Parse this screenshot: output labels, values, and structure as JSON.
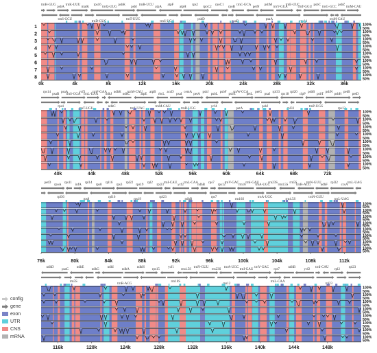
{
  "colors": {
    "exon": "#7a83c7",
    "utr": "#5fd0dc",
    "cns": "#f08a87",
    "mrna": "#b2b2b2",
    "gene": "#7d7d7d",
    "config": "#c8c8c8",
    "plot_bg": "#6e7fc9",
    "line": "#222222"
  },
  "legend": [
    {
      "key": "config",
      "label": "config",
      "kind": "arrow",
      "color": "#c8c8c8"
    },
    {
      "key": "gene",
      "label": "gene",
      "kind": "arrow",
      "color": "#7d7d7d"
    },
    {
      "key": "exon",
      "label": "exon",
      "kind": "box",
      "color": "#7a83c7"
    },
    {
      "key": "utr",
      "label": "UTR",
      "kind": "box",
      "color": "#5fd0dc"
    },
    {
      "key": "cns",
      "label": "CNS",
      "kind": "box",
      "color": "#f08a87"
    },
    {
      "key": "mrna",
      "label": "mRNA",
      "kind": "box",
      "color": "#b2b2b2"
    }
  ],
  "panels": [
    {
      "id": "p1",
      "start": 0,
      "end": 38000,
      "ticks": [
        "0k",
        "4k",
        "8k",
        "12k",
        "16k",
        "20k",
        "24k",
        "28k",
        "32k",
        "36k"
      ],
      "tick_values": [
        0,
        4000,
        8000,
        12000,
        16000,
        20000,
        24000,
        28000,
        32000,
        36000
      ],
      "rows": [
        "1",
        "2",
        "3",
        "4",
        "5",
        "6",
        "7",
        "8"
      ],
      "genes_top": [
        "trnH-GUG",
        "psbA",
        "trnK-UUU",
        "matK",
        "rps16",
        "trnQ-UUG",
        "psbK",
        "psbI",
        "trnR-UCU",
        "atpA",
        "atpF",
        "atpH",
        "rps2",
        "rpoC2",
        "rpoC1",
        "rpoB",
        "trnC-GCA",
        "petN",
        "psbM",
        "trnY-GUA",
        "trnE-UUC",
        "trnT-GGU",
        "psbC",
        "trnG-GCC",
        "psbZ",
        "trnM-CAU"
      ],
      "genes_bottom": [
        "trnS-GCU",
        "trnD-GUC",
        "trnT-UUC",
        "trnS-UGA",
        "psbD",
        "psaB",
        "psaA",
        "rps14",
        "trnM-CAU"
      ]
    },
    {
      "id": "p2",
      "start": 38000,
      "end": 76000,
      "ticks": [
        "40k",
        "44k",
        "48k",
        "52k",
        "56k",
        "60k",
        "64k",
        "68k",
        "72k"
      ],
      "tick_values": [
        40000,
        44000,
        48000,
        52000,
        56000,
        60000,
        64000,
        68000,
        72000
      ],
      "rows": [
        "1",
        "2",
        "3",
        "4",
        "5",
        "6",
        "7",
        "8"
      ],
      "genes_top": [
        "rps14",
        "psaB",
        "psaA",
        "trnS-GGA",
        "ycf3",
        "trnL-UAA",
        "trnF-GAA",
        "ndhJ",
        "ndhK",
        "ndhC",
        "trnM-CAU",
        "atpE",
        "atpB",
        "rbcL",
        "accD",
        "psaI",
        "cemA",
        "petA",
        "psbJ",
        "psbL",
        "psbF",
        "psbE",
        "trnW-CCA",
        "petL",
        "petG",
        "psaJ",
        "rpl33",
        "rps18",
        "rpl20",
        "clpP",
        "psbB",
        "psbT",
        "psbN",
        "psbH",
        "petB",
        "petD"
      ],
      "genes_bottom": [
        "rps4",
        "trnT-UGU",
        "ndhC",
        "trnV-UAC",
        "trnM-CAU",
        "trnR-UGG",
        "ycf4",
        "petA",
        "psbJ",
        "rpl33",
        "trnP-UGG",
        "rps12"
      ]
    },
    {
      "id": "p3",
      "start": 76000,
      "end": 114000,
      "ticks": [
        "76k",
        "80k",
        "84k",
        "88k",
        "92k",
        "96k",
        "100k",
        "104k",
        "108k",
        "112k"
      ],
      "tick_values": [
        76000,
        80000,
        84000,
        88000,
        92000,
        96000,
        100000,
        104000,
        108000,
        112000
      ],
      "rows": [
        "1",
        "2",
        "3",
        "4",
        "5",
        "6",
        "7",
        "8"
      ],
      "genes_top": [
        "petD",
        "rpoA",
        "rps11",
        "infA",
        "rpl14",
        "rps8",
        "rpl16",
        "rps3",
        "rpl22",
        "rps19",
        "rpl2",
        "rpl23",
        "trnI-CAU",
        "ycf2",
        "trnL-CAA",
        "ndhB",
        "rps7",
        "rps12",
        "trnV-GAC",
        "rrn16",
        "trnI-GAU",
        "trnA-UGC",
        "rrn23S",
        "rrn4.5S",
        "rrn5S",
        "trnR-ACG",
        "trnN-GUU",
        "ndhF",
        "rpl32",
        "ccsA",
        "trnL-UAG"
      ],
      "genes_bottom": [
        "rpl36",
        "rps8",
        "rpl16",
        "rps19",
        "rpl23",
        "ndhB",
        "rps7",
        "rrn16S",
        "trnA-UGC",
        "rrn4.5S",
        "trnN-GUU",
        "trnL-UAG"
      ]
    },
    {
      "id": "p4",
      "start": 114000,
      "end": 152000,
      "ticks": [
        "116k",
        "120k",
        "124k",
        "128k",
        "132k",
        "136k",
        "140k",
        "144k",
        "148k"
      ],
      "tick_values": [
        116000,
        120000,
        124000,
        128000,
        132000,
        136000,
        140000,
        144000,
        148000
      ],
      "rows": [
        "1",
        "2",
        "3",
        "4",
        "5",
        "6",
        "7",
        "8"
      ],
      "genes_top": [
        "ndhD",
        "psaC",
        "ndhE",
        "ndhG",
        "ndhI",
        "ndhA",
        "ndhH",
        "rps15",
        "ycf1",
        "rrn4.5S",
        "trnN-GUU",
        "rrn23S",
        "trnA-UGC",
        "trnI-GAU",
        "trnV-GAC",
        "rps7",
        "ndhB",
        "ycf2",
        "trnI-CAU",
        "rpl2",
        "rpl23"
      ],
      "genes_bottom": [
        "rrn5S",
        "trnR-ACG",
        "rrn16S",
        "rps12",
        "trnL-CAA",
        "rpl23"
      ]
    }
  ],
  "pct_labels": [
    "100%",
    "50%"
  ]
}
